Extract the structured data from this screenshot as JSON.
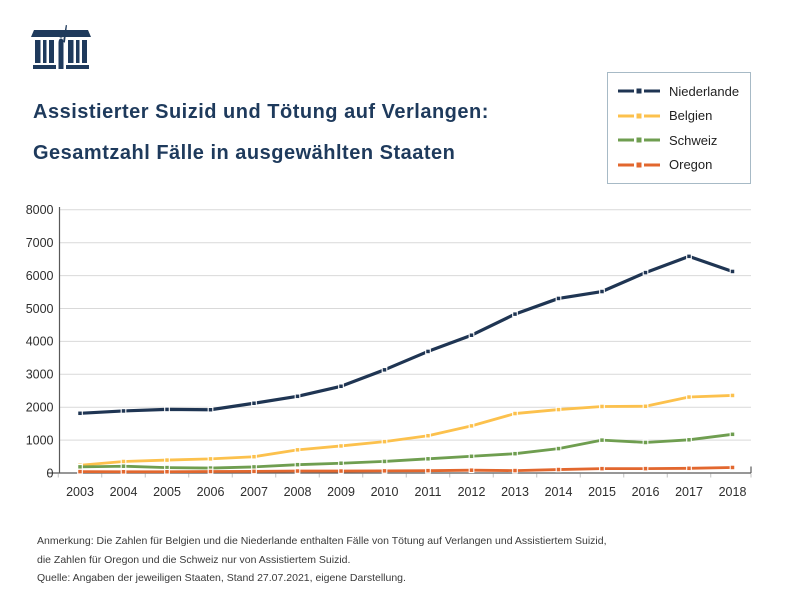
{
  "header": {
    "logo_icon": "temple-with-statue-icon",
    "title_line1": "Assistierter Suizid und Tötung auf Verlangen:",
    "title_line2": "Gesamtzahl Fälle in ausgewählten Staaten"
  },
  "chart_data": {
    "type": "line",
    "title": "Assistierter Suizid und Tötung auf Verlangen: Gesamtzahl Fälle in ausgewählten Staaten",
    "x": [
      2003,
      2004,
      2005,
      2006,
      2007,
      2008,
      2009,
      2010,
      2011,
      2012,
      2013,
      2014,
      2015,
      2016,
      2017,
      2018
    ],
    "series": [
      {
        "name": "Niederlande",
        "color": "#1f3553",
        "values": [
          1815,
          1886,
          1933,
          1923,
          2120,
          2331,
          2636,
          3136,
          3695,
          4188,
          4829,
          5306,
          5516,
          6091,
          6585,
          6126
        ]
      },
      {
        "name": "Belgien",
        "color": "#fcc14d",
        "values": [
          235,
          349,
          393,
          429,
          495,
          704,
          822,
          953,
          1133,
          1432,
          1807,
          1928,
          2022,
          2028,
          2309,
          2357
        ]
      },
      {
        "name": "Schweiz",
        "color": "#6f9e50",
        "values": [
          187,
          206,
          164,
          150,
          185,
          253,
          297,
          352,
          431,
          508,
          587,
          742,
          999,
          928,
          1009,
          1176
        ]
      },
      {
        "name": "Oregon",
        "color": "#e2672e",
        "values": [
          42,
          37,
          38,
          46,
          49,
          60,
          59,
          65,
          71,
          85,
          73,
          105,
          132,
          133,
          143,
          168
        ]
      }
    ],
    "ylim": [
      0,
      8000
    ],
    "ytick_step": 1000,
    "grid": "horizontal",
    "gridline_color": "#d9d9d9",
    "axis_color": "#595959",
    "legend_position": "top-right",
    "xlabel": "",
    "ylabel": ""
  },
  "footer": {
    "note_line1": "Anmerkung: Die Zahlen für Belgien und die Niederlande enthalten Fälle von Tötung auf Verlangen und Assistiertem Suizid,",
    "note_line2": "die Zahlen für Oregon und die Schweiz nur von Assistiertem Suizid.",
    "source_line": "Quelle: Angaben der jeweiligen Staaten, Stand 27.07.2021, eigene Darstellung."
  }
}
